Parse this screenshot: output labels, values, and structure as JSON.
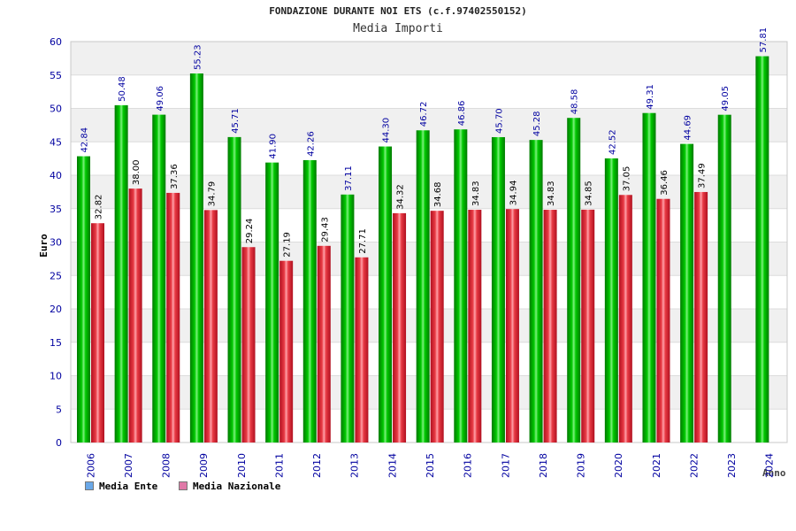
{
  "title": "FONDAZIONE DURANTE NOI ETS (c.f.97402550152)",
  "subtitle": "Media Importi",
  "legend": [
    {
      "label": "Media Ente",
      "color": "#6aa8e8"
    },
    {
      "label": "Media Nazionale",
      "color": "#e07aa8"
    }
  ],
  "colors": {
    "ente_bar": "#00b000",
    "nazionale_bar": "#e0303a",
    "axis_text": "#0000a0"
  },
  "chart_data": {
    "type": "bar",
    "title": "FONDAZIONE DURANTE NOI ETS (c.f.97402550152)",
    "subtitle": "Media Importi",
    "xlabel": "Anno",
    "ylabel": "Euro",
    "ylim": [
      0,
      60
    ],
    "yticks": [
      0,
      5,
      10,
      15,
      20,
      25,
      30,
      35,
      40,
      45,
      50,
      55,
      60
    ],
    "grid": true,
    "legend_position": "bottom-left",
    "categories": [
      "2006",
      "2007",
      "2008",
      "2009",
      "2010",
      "2011",
      "2012",
      "2013",
      "2014",
      "2015",
      "2016",
      "2017",
      "2018",
      "2019",
      "2020",
      "2021",
      "2022",
      "2023",
      "2024"
    ],
    "series": [
      {
        "name": "Media Ente",
        "values": [
          42.84,
          50.48,
          49.06,
          55.23,
          45.71,
          41.9,
          42.26,
          37.11,
          44.3,
          46.72,
          46.86,
          45.7,
          45.28,
          48.58,
          42.52,
          49.31,
          44.69,
          49.05,
          57.81
        ],
        "labels": [
          "42.84",
          "50.48",
          "49.06",
          "55.23",
          "45.71",
          "41.90",
          "42.26",
          "37.11",
          "44.30",
          "46.72",
          "46.86",
          "45.70",
          "45.28",
          "48.58",
          "42.52",
          "49.31",
          "44.69",
          "49.05",
          "57.81"
        ]
      },
      {
        "name": "Media Nazionale",
        "values": [
          32.82,
          38.0,
          37.36,
          34.79,
          29.24,
          27.19,
          29.43,
          27.71,
          34.32,
          34.68,
          34.83,
          34.94,
          34.83,
          34.85,
          37.05,
          36.46,
          37.49,
          null,
          null
        ],
        "labels": [
          "32.82",
          "38.00",
          "37.36",
          "34.79",
          "29.24",
          "27.19",
          "29.43",
          "27.71",
          "34.32",
          "34.68",
          "34.83",
          "34.94",
          "34.83",
          "34.85",
          "37.05",
          "36.46",
          "37.49",
          null,
          null
        ]
      }
    ]
  }
}
